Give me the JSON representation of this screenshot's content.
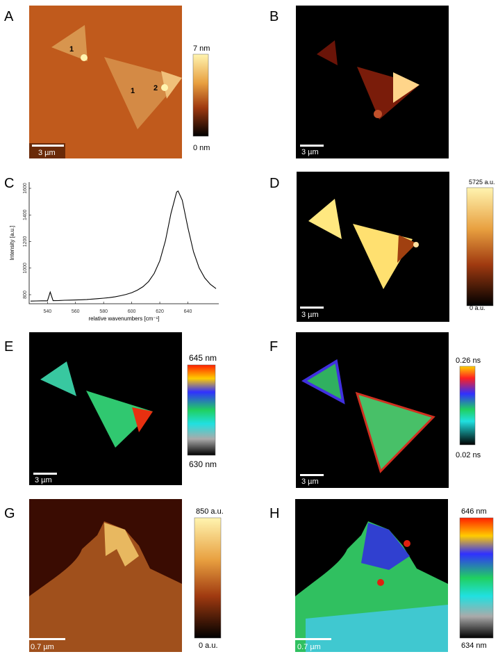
{
  "panels": [
    {
      "label": "A",
      "scale_bar": "3 µm",
      "colorbar": {
        "max": "7 nm",
        "min": "0 nm"
      },
      "annotations": [
        "1",
        "1",
        "2"
      ]
    },
    {
      "label": "B",
      "scale_bar": "3 µm"
    },
    {
      "label": "C"
    },
    {
      "label": "D",
      "scale_bar": "3 µm",
      "colorbar": {
        "max": "5725 a.u.",
        "min": "0 a.u."
      }
    },
    {
      "label": "E",
      "scale_bar": "3 µm",
      "colorbar": {
        "max": "645 nm",
        "min": "630 nm"
      }
    },
    {
      "label": "F",
      "scale_bar": "3 µm",
      "colorbar": {
        "max": "0.26 ns",
        "min": "0.02 ns"
      }
    },
    {
      "label": "G",
      "scale_bar": "0.7 µm",
      "colorbar": {
        "max": "850 a.u.",
        "min": "0 a.u."
      }
    },
    {
      "label": "H",
      "scale_bar": "0.7 µm",
      "colorbar": {
        "max": "646 nm",
        "min": "634 nm"
      }
    }
  ],
  "chart_data": {
    "type": "line",
    "x_label": "relative wavenumbers [cm⁻¹]",
    "y_label": "Intensity [a.u.]",
    "color": "#000000",
    "x": [
      528,
      532,
      536,
      540,
      542,
      544,
      548,
      552,
      556,
      560,
      564,
      568,
      572,
      576,
      580,
      584,
      588,
      592,
      596,
      600,
      604,
      608,
      612,
      616,
      620,
      624,
      628,
      632,
      633,
      636,
      640,
      644,
      648,
      652,
      656,
      660
    ],
    "values": [
      752,
      753,
      754,
      754,
      820,
      755,
      756,
      758,
      759,
      760,
      762,
      764,
      767,
      770,
      774,
      778,
      784,
      792,
      802,
      815,
      834,
      860,
      899,
      960,
      1055,
      1206,
      1413,
      1572,
      1580,
      1511,
      1305,
      1123,
      1002,
      926,
      878,
      846
    ],
    "xlim": [
      527,
      662
    ],
    "ylim": [
      732,
      1647
    ],
    "xticks": [
      540,
      560,
      580,
      600,
      620,
      640
    ],
    "yticks": [
      800,
      1000,
      1200,
      1400,
      1600
    ]
  }
}
